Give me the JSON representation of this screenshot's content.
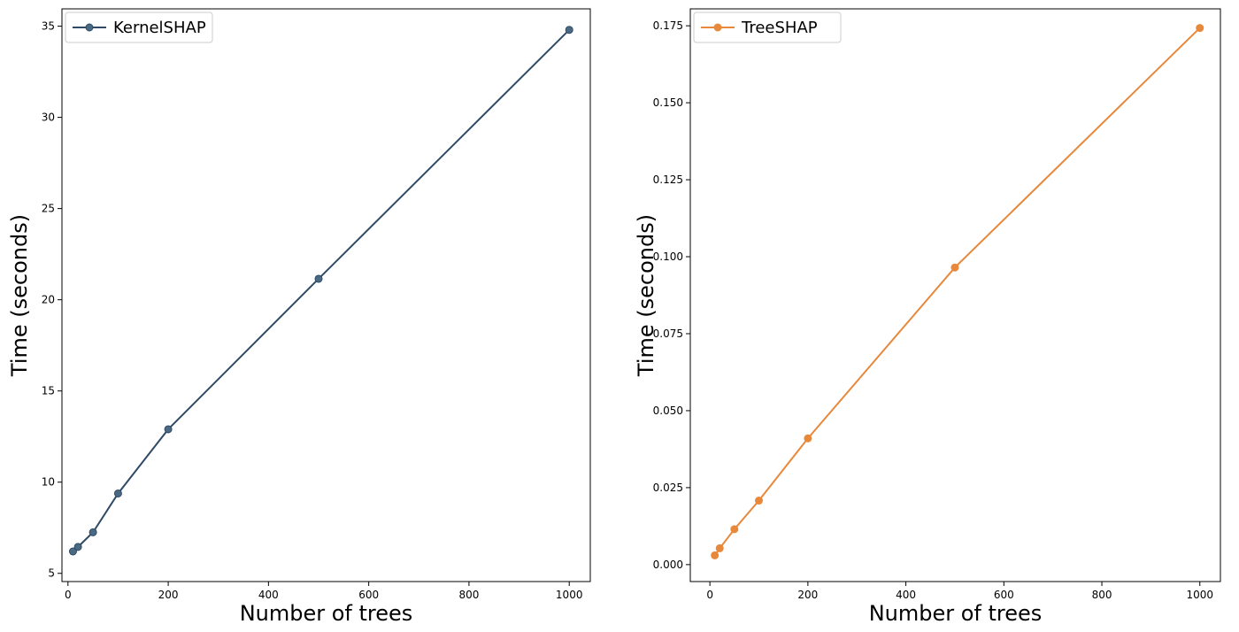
{
  "chart_data": [
    {
      "type": "line",
      "xlabel": "Number of trees",
      "ylabel": "Time (seconds)",
      "xlim": [
        -12,
        1042
      ],
      "ylim": [
        4.55,
        35.95
      ],
      "xticks": [
        0,
        200,
        400,
        600,
        800,
        1000
      ],
      "yticks": [
        5,
        10,
        15,
        20,
        25,
        30,
        35
      ],
      "xtick_labels": [
        "0",
        "200",
        "400",
        "600",
        "800",
        "1000"
      ],
      "ytick_labels": [
        "5",
        "10",
        "15",
        "20",
        "25",
        "30",
        "35"
      ],
      "grid": false,
      "legend_position": "top-left",
      "series": [
        {
          "name": "KernelSHAP",
          "color": "#2e4a66",
          "marker_fill": "#4a6a84",
          "x": [
            10,
            20,
            50,
            100,
            200,
            500,
            1000
          ],
          "values": [
            6.2,
            6.45,
            7.25,
            9.38,
            12.9,
            21.15,
            34.8
          ]
        }
      ]
    },
    {
      "type": "line",
      "xlabel": "Number of trees",
      "ylabel": "Time (seconds)",
      "xlim": [
        -40,
        1042
      ],
      "ylim": [
        -0.0055,
        0.1805
      ],
      "xticks": [
        0,
        200,
        400,
        600,
        800,
        1000
      ],
      "yticks": [
        0.0,
        0.025,
        0.05,
        0.075,
        0.1,
        0.125,
        0.15,
        0.175
      ],
      "xtick_labels": [
        "0",
        "200",
        "400",
        "600",
        "800",
        "1000"
      ],
      "ytick_labels": [
        "0.000",
        "0.025",
        "0.050",
        "0.075",
        "0.100",
        "0.125",
        "0.150",
        "0.175"
      ],
      "grid": false,
      "legend_position": "top-left",
      "series": [
        {
          "name": "TreeSHAP",
          "color": "#e8883a",
          "marker_fill": "#e8883a",
          "x": [
            10,
            20,
            50,
            100,
            200,
            500,
            1000
          ],
          "values": [
            0.003,
            0.0053,
            0.0115,
            0.0208,
            0.041,
            0.0965,
            0.1743
          ]
        }
      ]
    }
  ]
}
